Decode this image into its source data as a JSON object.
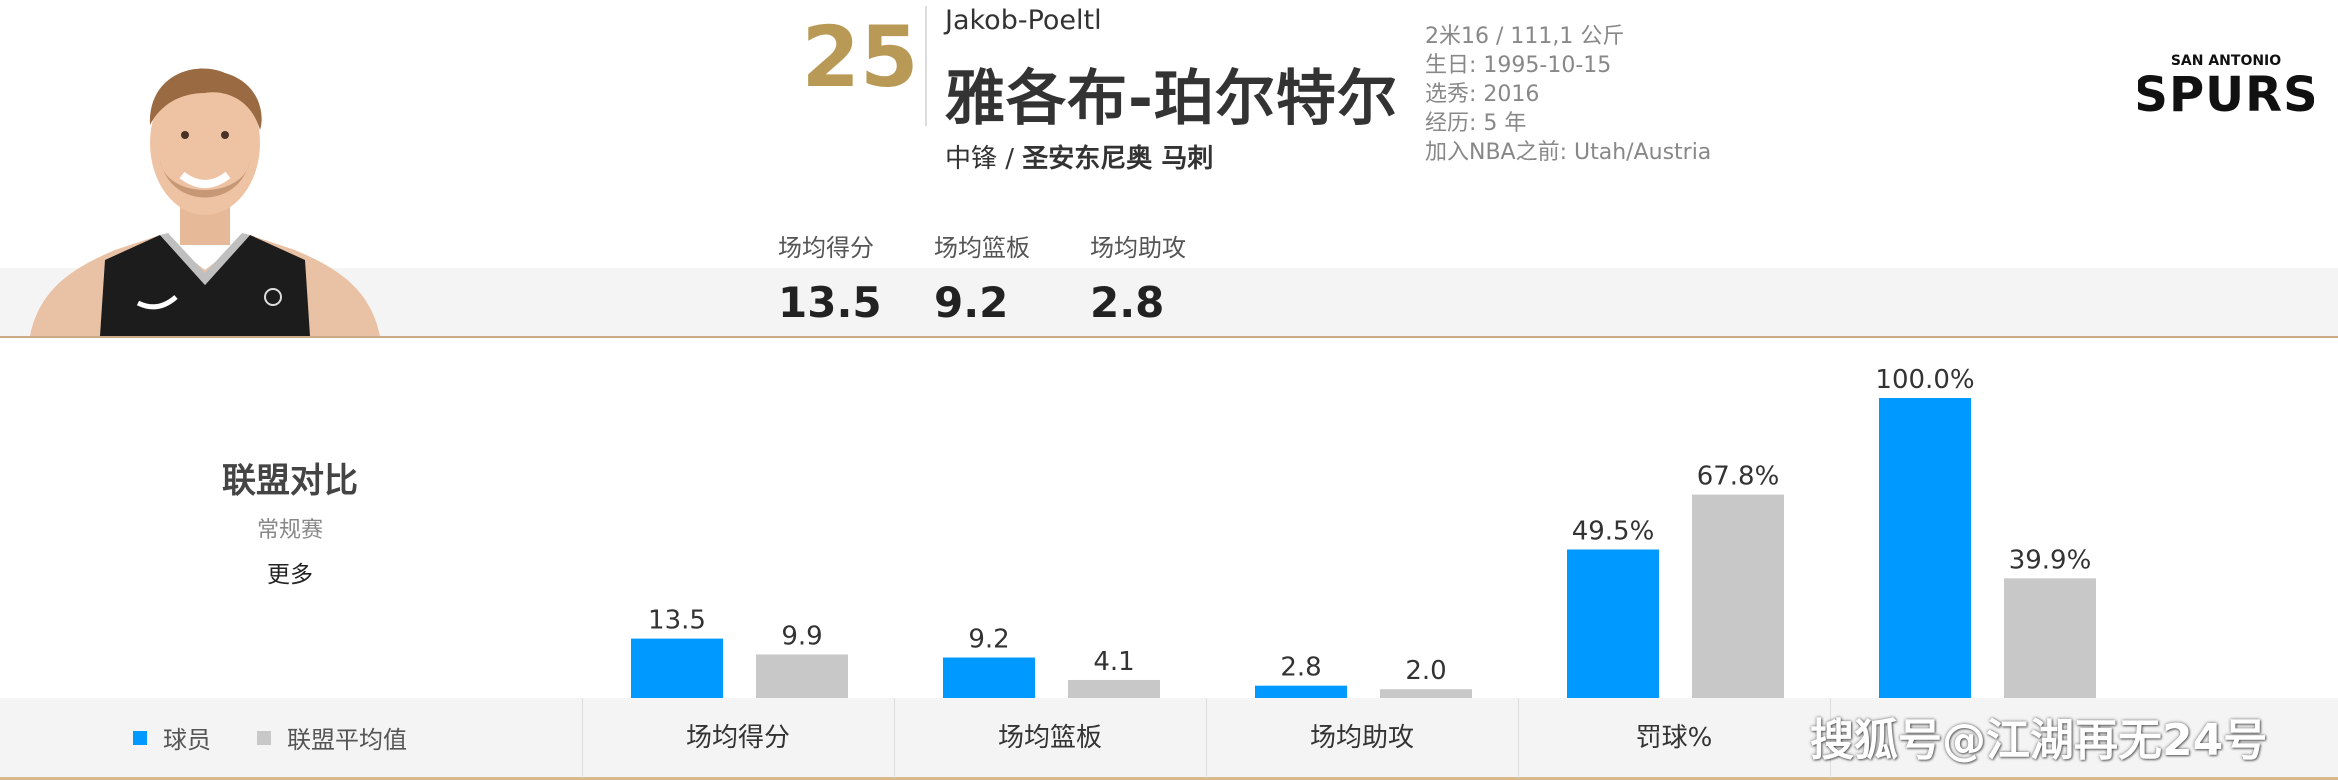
{
  "player": {
    "jersey": "25",
    "name_en": "Jakob-Poeltl",
    "name_cn": "雅各布-珀尔特尔",
    "position": "中锋 /",
    "team": "圣安东尼奥 马刺",
    "info": [
      "2米16 / 111,1 公斤",
      "生日: 1995-10-15",
      "选秀: 2016",
      "经历: 5 年",
      "加入NBA之前: Utah/Austria"
    ]
  },
  "header_stats": [
    {
      "label": "场均得分",
      "value": "13.5"
    },
    {
      "label": "场均篮板",
      "value": "9.2"
    },
    {
      "label": "场均助攻",
      "value": "2.8"
    }
  ],
  "comparison": {
    "title": "联盟对比",
    "season": "常规赛",
    "more": "更多"
  },
  "legend": {
    "player": "球员",
    "league": "联盟平均值"
  },
  "colors": {
    "player": "#0099ff",
    "league": "#c8c8c8",
    "gold": "#b89a56",
    "rule": "#c8a983"
  },
  "icons": [
    "player-photo",
    "spurs-logo"
  ],
  "chart_data": {
    "type": "bar",
    "categories": [
      "场均得分",
      "场均篮板",
      "场均助攻",
      "罚球%",
      ""
    ],
    "series": [
      {
        "name": "球员",
        "values": [
          13.5,
          9.2,
          2.8,
          49.5,
          100.0
        ],
        "labels": [
          "13.5",
          "9.2",
          "2.8",
          "49.5%",
          "100.0%"
        ]
      },
      {
        "name": "联盟平均值",
        "values": [
          9.9,
          4.1,
          2.0,
          67.8,
          39.9
        ],
        "labels": [
          "9.9",
          "4.1",
          "2.0",
          "67.8%",
          "39.9%"
        ]
      }
    ]
  },
  "watermark": "搜狐号@江湖再无24号"
}
